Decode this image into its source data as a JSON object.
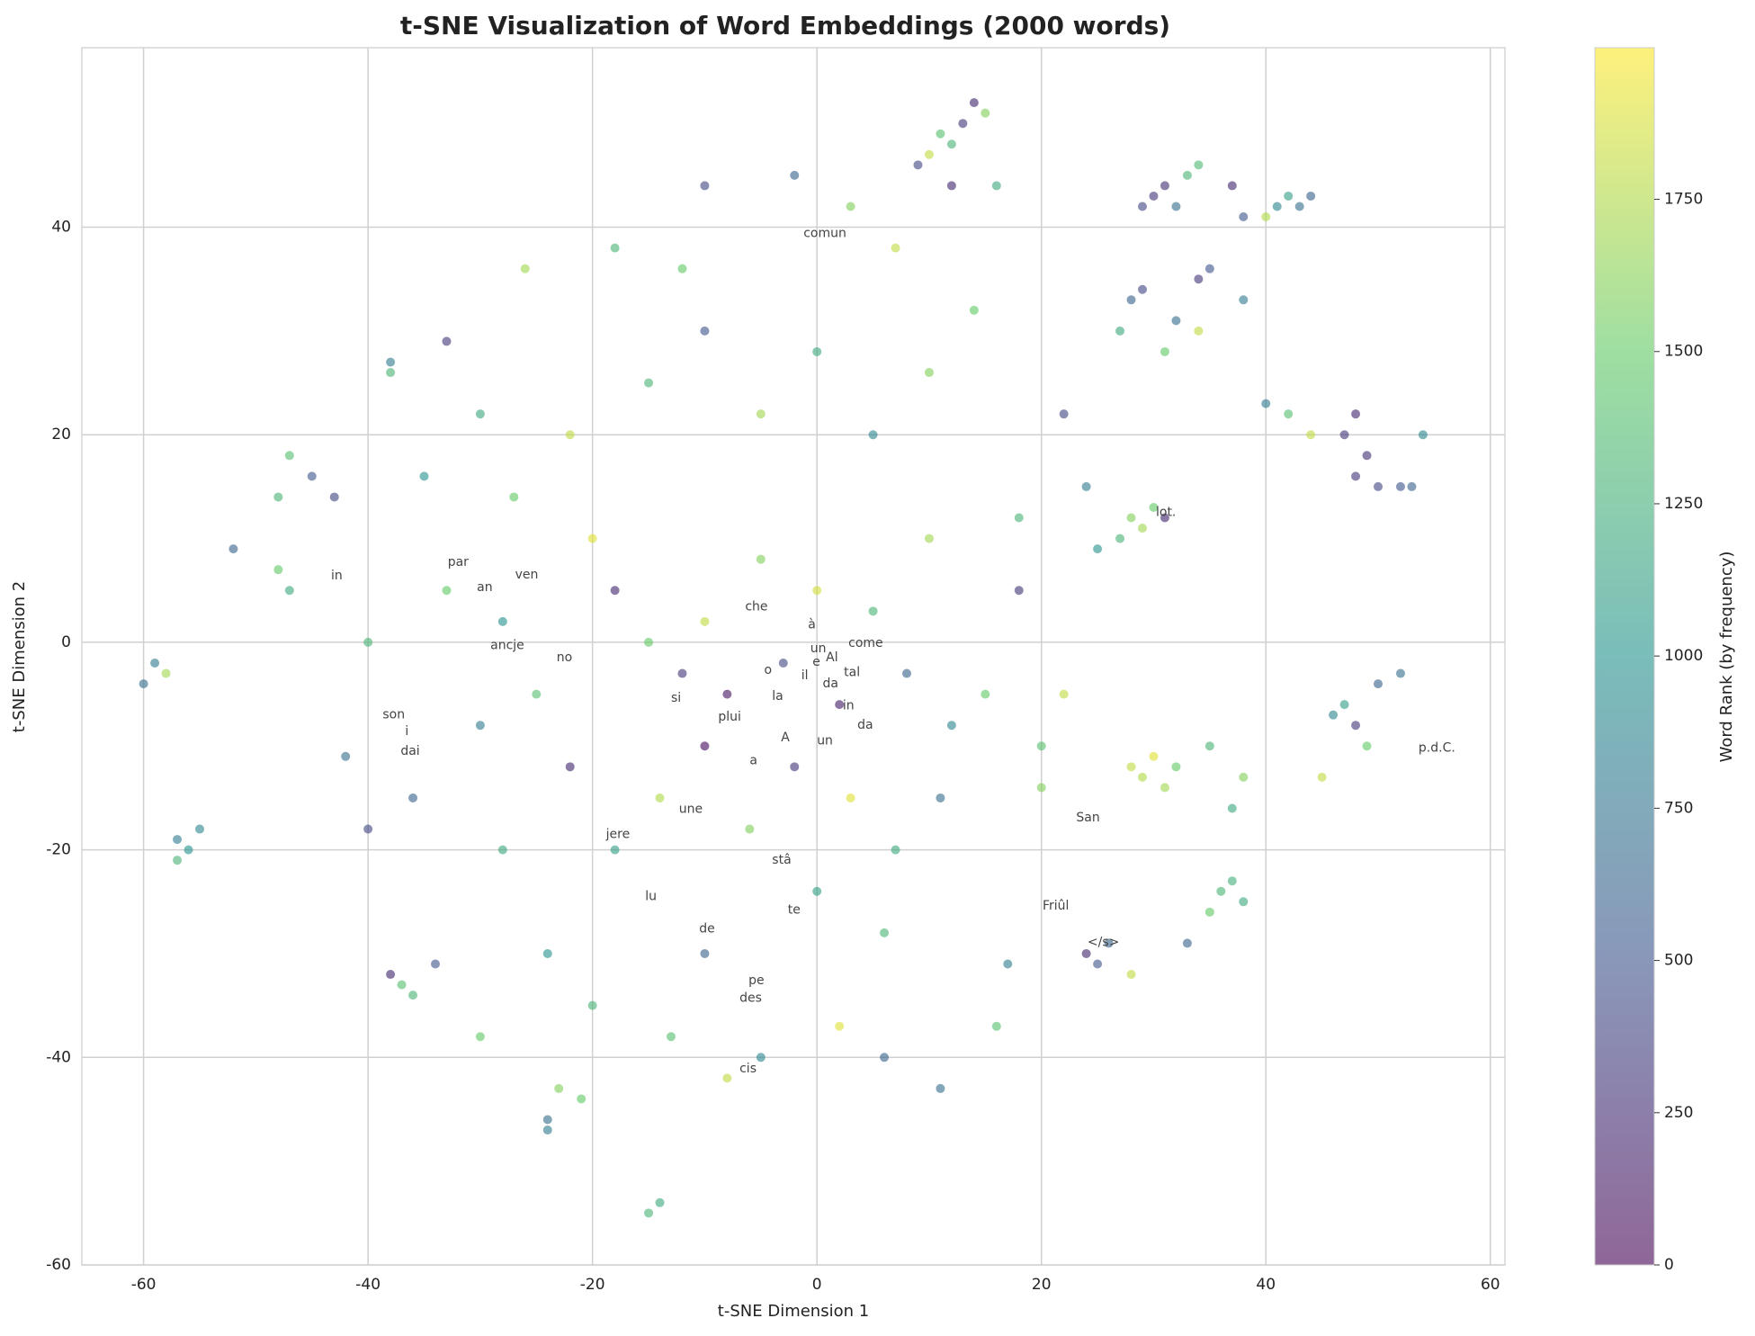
{
  "chart_data": {
    "type": "scatter",
    "title": "t-SNE Visualization of Word Embeddings (2000 words)",
    "x_label": "t-SNE Dimension 1",
    "y_label": "t-SNE Dimension 2",
    "colorbar_label": "Word Rank (by frequency)",
    "xlim": [
      -65.5,
      61.3
    ],
    "ylim": [
      -60,
      57.3
    ],
    "xticks": [
      -60,
      -40,
      -20,
      0,
      20,
      40,
      60
    ],
    "yticks": [
      -60,
      -40,
      -20,
      0,
      20,
      40
    ],
    "clim": [
      0,
      1999
    ],
    "cticks": [
      0,
      250,
      500,
      750,
      1000,
      1250,
      1500,
      1750
    ],
    "colormap": "viridis",
    "grid": true,
    "x": [
      11,
      12,
      13,
      14,
      15,
      10,
      9,
      16,
      12,
      30,
      31,
      33,
      34,
      32,
      29,
      41,
      42,
      43,
      44,
      38,
      37,
      40,
      28,
      29,
      32,
      34,
      35,
      38,
      27,
      31,
      34,
      47,
      48,
      49,
      48,
      50,
      52,
      53,
      54,
      44,
      42,
      40,
      27,
      28,
      29,
      30,
      31,
      25,
      24,
      28,
      29,
      30,
      31,
      32,
      35,
      37,
      38,
      47,
      48,
      46,
      49,
      45,
      50,
      52,
      36,
      37,
      38,
      35,
      33,
      24,
      25,
      26,
      28,
      -57,
      -56,
      -55,
      -57,
      -59,
      -58,
      -60,
      -47,
      -45,
      -43,
      -48,
      -48,
      -47,
      -52,
      -38,
      -38,
      -37,
      -36,
      -34,
      -38,
      -24,
      -24,
      -23,
      -21,
      -15,
      -14,
      -20,
      -18,
      -15,
      -12,
      -10,
      -8,
      -5,
      -3,
      0,
      2,
      5,
      8,
      10,
      12,
      -25,
      -22,
      -18,
      -14,
      -10,
      -6,
      -2,
      3,
      7,
      11,
      15,
      18,
      20,
      -28,
      -30,
      -33,
      -40,
      -36,
      -28,
      -22,
      -15,
      -10,
      -5,
      0,
      5,
      10,
      -18,
      -12,
      -10,
      -2,
      3,
      -13,
      -8,
      -5,
      2,
      6,
      11,
      -30,
      -40,
      -42,
      16,
      17,
      20,
      22,
      -26,
      -33,
      -30,
      -35,
      14,
      7,
      22,
      18,
      -27,
      -24,
      -20,
      -10,
      0,
      6
    ],
    "values": [
      49,
      48,
      50,
      52,
      51,
      47,
      46,
      44,
      44,
      43,
      44,
      45,
      46,
      42,
      42,
      42,
      43,
      42,
      43,
      41,
      44,
      41,
      33,
      34,
      31,
      35,
      36,
      33,
      30,
      28,
      30,
      20,
      22,
      18,
      16,
      15,
      15,
      15,
      20,
      20,
      22,
      23,
      10,
      12,
      11,
      13,
      12,
      9,
      15,
      -12,
      -13,
      -11,
      -14,
      -12,
      -10,
      -16,
      -13,
      -6,
      -8,
      -7,
      -10,
      -13,
      -4,
      -3,
      -24,
      -23,
      -25,
      -26,
      -29,
      -30,
      -31,
      -29,
      -32,
      -19,
      -20,
      -18,
      -21,
      -2,
      -3,
      -4,
      18,
      16,
      14,
      14,
      7,
      5,
      9,
      27,
      26,
      -33,
      -34,
      -31,
      -32,
      -47,
      -46,
      -43,
      -44,
      -55,
      -54,
      10,
      5,
      0,
      -3,
      2,
      -5,
      8,
      -2,
      5,
      -6,
      3,
      -3,
      10,
      -8,
      -5,
      -12,
      -20,
      -15,
      -10,
      -18,
      -12,
      -15,
      -20,
      -15,
      -5,
      5,
      -10,
      2,
      -8,
      5,
      0,
      -15,
      -20,
      20,
      25,
      30,
      22,
      28,
      20,
      26,
      38,
      36,
      44,
      45,
      42,
      -38,
      -42,
      -40,
      -37,
      -40,
      -43,
      -38,
      -18,
      -11,
      -37,
      -31,
      -14,
      -5,
      36,
      29,
      22,
      16,
      32,
      38,
      22,
      12,
      14,
      -30,
      -35,
      -30,
      -24,
      -28
    ],
    "rank": [
      1400,
      1300,
      300,
      200,
      1600,
      1800,
      400,
      1200,
      200,
      300,
      250,
      1300,
      1350,
      700,
      400,
      900,
      1100,
      700,
      600,
      500,
      200,
      1750,
      600,
      400,
      700,
      300,
      500,
      800,
      1200,
      1500,
      1800,
      300,
      200,
      250,
      300,
      400,
      500,
      600,
      900,
      1800,
      1400,
      800,
      1300,
      1600,
      1700,
      1500,
      200,
      1000,
      800,
      1800,
      1750,
      1900,
      1700,
      1500,
      1300,
      1200,
      1600,
      1100,
      300,
      900,
      1500,
      1800,
      600,
      700,
      1300,
      1250,
      1200,
      1500,
      600,
      200,
      500,
      600,
      1800,
      800,
      1000,
      900,
      1300,
      800,
      1700,
      700,
      1400,
      500,
      400,
      1300,
      1500,
      1200,
      600,
      800,
      1300,
      1400,
      1300,
      500,
      200,
      800,
      700,
      1600,
      1500,
      1300,
      1200,
      1900,
      200,
      1500,
      300,
      1800,
      100,
      1600,
      400,
      1850,
      150,
      1300,
      600,
      1700,
      900,
      1400,
      200,
      1100,
      1750,
      50,
      1600,
      300,
      1900,
      1200,
      700,
      1500,
      300,
      1400,
      1000,
      800,
      1500,
      1300,
      600,
      1200,
      1800,
      1300,
      500,
      1700,
      1200,
      900,
      1600,
      1300,
      1500,
      400,
      600,
      1600,
      1400,
      1800,
      900,
      1900,
      600,
      700,
      1500,
      400,
      700,
      1400,
      800,
      1600,
      1800,
      1700,
      300,
      1200,
      1000,
      1500,
      1800,
      400,
      1300,
      1500,
      1000,
      1300,
      600,
      1100,
      1300
    ],
    "annotations": [
      {
        "text": "comun",
        "x": -1.2,
        "y": 39.4
      },
      {
        "text": "lot.",
        "x": 30.2,
        "y": 12.5
      },
      {
        "text": "in",
        "x": -43.3,
        "y": 6.4
      },
      {
        "text": "par",
        "x": -32.9,
        "y": 7.7
      },
      {
        "text": "ven",
        "x": -26.9,
        "y": 6.5
      },
      {
        "text": "an",
        "x": -30.3,
        "y": 5.3
      },
      {
        "text": "che",
        "x": -6.4,
        "y": 3.4
      },
      {
        "text": "à",
        "x": -0.8,
        "y": 1.7
      },
      {
        "text": "ancje",
        "x": -29.1,
        "y": -0.3
      },
      {
        "text": "come",
        "x": 2.8,
        "y": -0.1
      },
      {
        "text": "un",
        "x": -0.6,
        "y": -0.6
      },
      {
        "text": "no",
        "x": -23.2,
        "y": -1.5
      },
      {
        "text": "Al",
        "x": 0.8,
        "y": -1.5
      },
      {
        "text": "e",
        "x": -0.4,
        "y": -1.9
      },
      {
        "text": "o",
        "x": -4.7,
        "y": -2.7
      },
      {
        "text": "tal",
        "x": 2.4,
        "y": -2.9
      },
      {
        "text": "il",
        "x": -1.4,
        "y": -3.2
      },
      {
        "text": "da",
        "x": 0.5,
        "y": -4.0
      },
      {
        "text": "si",
        "x": -13.0,
        "y": -5.4
      },
      {
        "text": "la",
        "x": -4.0,
        "y": -5.2
      },
      {
        "text": "in",
        "x": 2.3,
        "y": -6.1
      },
      {
        "text": "son",
        "x": -38.7,
        "y": -7.0
      },
      {
        "text": "plui",
        "x": -8.8,
        "y": -7.2
      },
      {
        "text": "da",
        "x": 3.6,
        "y": -8.0
      },
      {
        "text": "i",
        "x": -36.7,
        "y": -8.6
      },
      {
        "text": "A",
        "x": -3.2,
        "y": -9.2
      },
      {
        "text": "un",
        "x": 0,
        "y": -9.5
      },
      {
        "text": "dai",
        "x": -37.1,
        "y": -10.5
      },
      {
        "text": "a",
        "x": -6.0,
        "y": -11.4
      },
      {
        "text": "p.d.C.",
        "x": 53.6,
        "y": -10.2
      },
      {
        "text": "une",
        "x": -12.3,
        "y": -16.1
      },
      {
        "text": "San",
        "x": 23.1,
        "y": -16.9
      },
      {
        "text": "jere",
        "x": -18.8,
        "y": -18.5
      },
      {
        "text": "stâ",
        "x": -4.0,
        "y": -21.0
      },
      {
        "text": "lu",
        "x": -15.3,
        "y": -24.5
      },
      {
        "text": "Friûl",
        "x": 20.1,
        "y": -25.4
      },
      {
        "text": "te",
        "x": -2.6,
        "y": -25.8
      },
      {
        "text": "de",
        "x": -10.5,
        "y": -27.6
      },
      {
        "text": "</s>",
        "x": 24.1,
        "y": -28.9
      },
      {
        "text": "pe",
        "x": -6.1,
        "y": -32.6
      },
      {
        "text": "des",
        "x": -6.9,
        "y": -34.3
      },
      {
        "text": "cis",
        "x": -6.9,
        "y": -41.1
      }
    ]
  }
}
